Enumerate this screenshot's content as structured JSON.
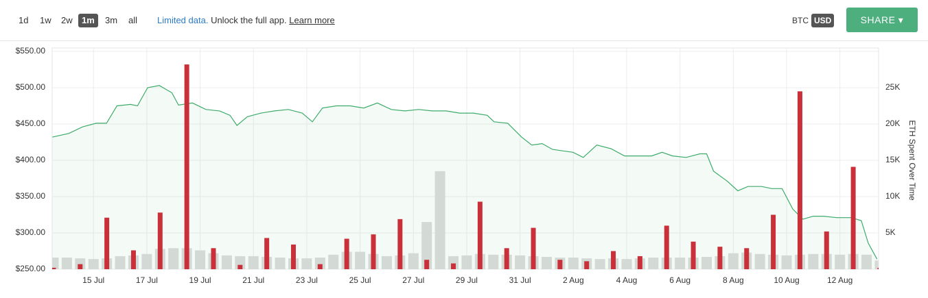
{
  "toolbar": {
    "ranges": [
      "1d",
      "1w",
      "2w",
      "1m",
      "3m",
      "all"
    ],
    "active_range": 3,
    "notice": {
      "highlight": "Limited data.",
      "text": "Unlock the full app.",
      "link": "Learn more"
    },
    "currencies": [
      "BTC",
      "USD"
    ],
    "active_currency": 1,
    "share": "SHARE"
  },
  "chart_data": {
    "type": "combo",
    "xlim": [
      -1.55,
      29.45
    ],
    "xticks": [
      {
        "value": 0,
        "label": "15 Jul"
      },
      {
        "value": 2,
        "label": "17 Jul"
      },
      {
        "value": 4,
        "label": "19 Jul"
      },
      {
        "value": 6,
        "label": "21 Jul"
      },
      {
        "value": 8,
        "label": "23 Jul"
      },
      {
        "value": 10,
        "label": "25 Jul"
      },
      {
        "value": 12,
        "label": "27 Jul"
      },
      {
        "value": 14,
        "label": "29 Jul"
      },
      {
        "value": 16,
        "label": "31 Jul"
      },
      {
        "value": 18,
        "label": "2 Aug"
      },
      {
        "value": 20,
        "label": "4 Aug"
      },
      {
        "value": 22,
        "label": "6 Aug"
      },
      {
        "value": 24,
        "label": "8 Aug"
      },
      {
        "value": 26,
        "label": "10 Aug"
      },
      {
        "value": 28,
        "label": "12 Aug"
      }
    ],
    "ylim": [
      250,
      550
    ],
    "yticks": [
      {
        "value": 250,
        "label": "$250.00"
      },
      {
        "value": 300,
        "label": "$300.00"
      },
      {
        "value": 350,
        "label": "$350.00"
      },
      {
        "value": 400,
        "label": "$400.00"
      },
      {
        "value": 450,
        "label": "$450.00"
      },
      {
        "value": 500,
        "label": "$500.00"
      },
      {
        "value": 550,
        "label": "$550.00"
      }
    ],
    "y2lim": [
      0,
      30000
    ],
    "y2ticks": [
      {
        "value": 5000,
        "label": "5K"
      },
      {
        "value": 10000,
        "label": "10K"
      },
      {
        "value": 15000,
        "label": "15K"
      },
      {
        "value": 20000,
        "label": "20K"
      },
      {
        "value": 25000,
        "label": "25K"
      }
    ],
    "y2label": "ETH Spent Over Time",
    "grid": true,
    "series": [
      {
        "type": "bar",
        "axis": "y2",
        "color": "#dcdcdc",
        "x": [
          -1.5,
          -1,
          -0.5,
          0,
          0.5,
          1,
          1.5,
          2,
          2.5,
          3,
          3.5,
          4,
          4.5,
          5,
          5.5,
          6,
          6.5,
          7,
          7.5,
          8,
          8.5,
          9,
          9.5,
          10,
          10.5,
          11,
          11.5,
          12,
          12.5,
          13,
          13.5,
          14,
          14.5,
          15,
          15.5,
          16,
          16.5,
          17,
          17.5,
          18,
          18.5,
          19,
          19.5,
          20,
          20.5,
          21,
          21.5,
          22,
          22.5,
          23,
          23.5,
          24,
          24.5,
          25,
          25.5,
          26,
          26.5,
          27,
          27.5,
          28,
          28.5,
          29,
          29.5
        ],
        "values": [
          1600,
          1600,
          1500,
          1400,
          1500,
          1800,
          1900,
          2100,
          2800,
          2900,
          2900,
          2600,
          2200,
          1900,
          1800,
          1800,
          1700,
          1600,
          1500,
          1500,
          1600,
          2000,
          2400,
          2400,
          2100,
          1800,
          1900,
          2200,
          6500,
          13500,
          1800,
          1900,
          2100,
          2000,
          2000,
          1900,
          1800,
          1700,
          1600,
          1600,
          1500,
          1400,
          1500,
          1400,
          1500,
          1600,
          1600,
          1600,
          1600,
          1700,
          1800,
          2200,
          2300,
          2100,
          2000,
          1900,
          2000,
          2100,
          2100,
          2000,
          2100,
          2000,
          1200
        ]
      },
      {
        "type": "line",
        "axis": "y",
        "color": "#3cab6a",
        "x": [
          -1.54,
          -0.93,
          -0.41,
          0.1,
          0.49,
          0.88,
          1.39,
          1.65,
          2.03,
          2.47,
          2.94,
          3.19,
          3.71,
          4.22,
          4.73,
          5.12,
          5.38,
          5.77,
          6.28,
          6.79,
          7.31,
          7.83,
          8.21,
          8.59,
          9.11,
          9.63,
          10.14,
          10.65,
          11.17,
          11.68,
          12.2,
          12.71,
          13.23,
          13.74,
          14.25,
          14.77,
          15.03,
          15.54,
          16.06,
          16.44,
          16.83,
          17.22,
          17.6,
          17.99,
          18.37,
          18.88,
          19.41,
          19.92,
          20.43,
          20.94,
          21.33,
          21.72,
          22.23,
          22.75,
          23.0,
          23.26,
          23.78,
          24.17,
          24.55,
          25.06,
          25.45,
          25.83,
          26.23,
          26.61,
          27.0,
          27.38,
          27.89,
          28.42,
          28.8,
          29.06,
          29.39
        ],
        "values": [
          432,
          437,
          446,
          451,
          451,
          475,
          477,
          475,
          500,
          503,
          493,
          476,
          479,
          470,
          468,
          462,
          448,
          460,
          465,
          468,
          470,
          465,
          453,
          472,
          475,
          475,
          472,
          479,
          470,
          468,
          470,
          468,
          468,
          465,
          465,
          462,
          453,
          451,
          432,
          421,
          423,
          415,
          413,
          411,
          404,
          421,
          416,
          406,
          406,
          406,
          411,
          406,
          404,
          409,
          409,
          385,
          371,
          358,
          364,
          364,
          361,
          361,
          333,
          319,
          323,
          323,
          321,
          321,
          317,
          286,
          264
        ]
      },
      {
        "type": "bar",
        "axis": "y2",
        "color": "#c9303a",
        "x": [
          -1.5,
          -0.5,
          0.5,
          1.5,
          2.5,
          3.5,
          4.5,
          5.5,
          6.5,
          7.5,
          8.5,
          9.5,
          10.5,
          11.5,
          12.5,
          13.5,
          14.5,
          15.5,
          16.5,
          17.5,
          18.5,
          19.5,
          20.5,
          21.5,
          22.5,
          23.5,
          24.5,
          25.5,
          26.5,
          27.5,
          28.5,
          29.5
        ],
        "values": [
          200,
          700,
          7100,
          2600,
          7800,
          28200,
          2900,
          600,
          4300,
          3400,
          700,
          4200,
          4800,
          6900,
          1300,
          800,
          9300,
          2900,
          5700,
          1300,
          1100,
          2500,
          1800,
          6000,
          3800,
          3100,
          2900,
          7500,
          24500,
          5200,
          14100,
          200
        ]
      }
    ]
  }
}
